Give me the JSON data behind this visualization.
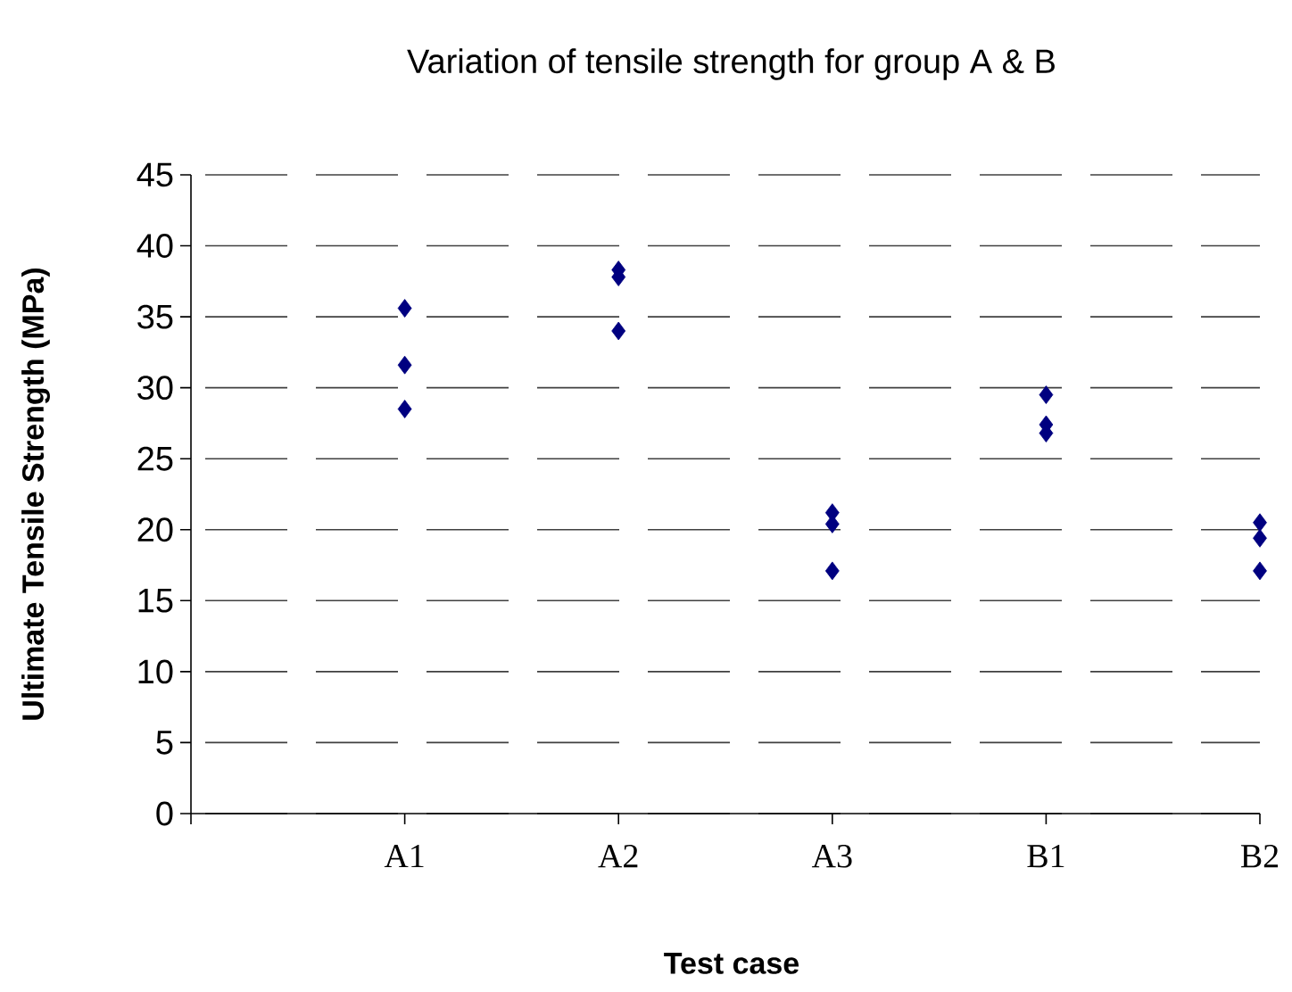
{
  "chart_data": {
    "type": "scatter",
    "title": "Variation of tensile strength for group A & B",
    "xlabel": "Test case",
    "ylabel": "Ultimate Tensile Strength (MPa)",
    "categories": [
      "A1",
      "A2",
      "A3",
      "B1",
      "B2"
    ],
    "series": [
      {
        "color": "#000080",
        "values": [
          35.6,
          38.3,
          21.2,
          29.5,
          20.5
        ]
      },
      {
        "color": "#000080",
        "values": [
          31.6,
          37.8,
          20.4,
          27.4,
          19.4
        ]
      },
      {
        "color": "#000080",
        "values": [
          28.5,
          34.0,
          17.1,
          26.8,
          17.1
        ]
      }
    ],
    "ylim": [
      0,
      45
    ],
    "yticks": [
      0,
      5,
      10,
      15,
      20,
      25,
      30,
      35,
      40,
      45
    ],
    "grid": "y",
    "marker": "diamond"
  }
}
